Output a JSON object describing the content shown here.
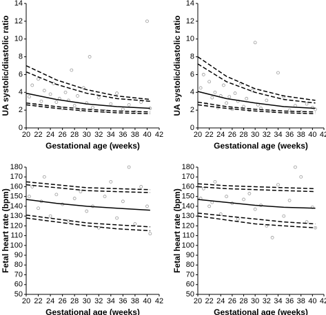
{
  "chart_data": [
    {
      "type": "scatter",
      "xlabel": "Gestational age (weeks)",
      "ylabel": "UA systolic/diastolic ratio",
      "xlim": [
        20,
        42
      ],
      "ylim": [
        0,
        14
      ],
      "xticks": [
        20,
        22,
        24,
        26,
        28,
        30,
        32,
        34,
        36,
        38,
        40,
        42
      ],
      "yticks": [
        0,
        2,
        4,
        6,
        8,
        10,
        12,
        14
      ],
      "point_color": "#999999",
      "points": {
        "x": [
          20.5,
          21,
          21.5,
          22,
          22.5,
          23,
          23.5,
          24,
          24.5,
          25,
          25.5,
          26,
          26.5,
          27,
          27.5,
          28,
          28.5,
          29,
          29.5,
          30,
          30.5,
          31,
          32,
          33,
          34,
          35,
          36,
          37,
          38,
          39,
          40,
          40.5
        ],
        "y": [
          3.5,
          4.8,
          2.6,
          5.5,
          3.0,
          4.2,
          2.4,
          3.8,
          5.0,
          2.9,
          3.3,
          2.2,
          4.0,
          3.1,
          6.5,
          2.5,
          3.6,
          2.0,
          4.5,
          2.8,
          8.0,
          2.3,
          3.4,
          1.9,
          2.7,
          3.9,
          2.1,
          2.6,
          1.8,
          2.9,
          12.0,
          2.2
        ]
      },
      "curves": [
        {
          "style": "dashed",
          "x": [
            20,
            25,
            30,
            35,
            40.5
          ],
          "values": [
            7.0,
            5.4,
            4.3,
            3.6,
            3.2
          ]
        },
        {
          "style": "dashed",
          "x": [
            20,
            25,
            30,
            35,
            40.5
          ],
          "values": [
            6.3,
            4.9,
            3.9,
            3.3,
            3.0
          ]
        },
        {
          "style": "solid",
          "x": [
            20,
            25,
            30,
            35,
            40.5
          ],
          "values": [
            3.9,
            3.2,
            2.7,
            2.4,
            2.2
          ]
        },
        {
          "style": "dashed",
          "x": [
            20,
            25,
            30,
            35,
            40.5
          ],
          "values": [
            2.8,
            2.4,
            2.1,
            1.9,
            1.8
          ]
        },
        {
          "style": "dashed",
          "x": [
            20,
            25,
            30,
            35,
            40.5
          ],
          "values": [
            2.6,
            2.2,
            1.9,
            1.7,
            1.6
          ]
        }
      ]
    },
    {
      "type": "scatter",
      "xlabel": "Gestational age (weeks)",
      "ylabel": "UA systolic/diastolic ratio",
      "xlim": [
        20,
        42
      ],
      "ylim": [
        0,
        14
      ],
      "xticks": [
        20,
        22,
        24,
        26,
        28,
        30,
        32,
        34,
        36,
        38,
        40,
        42
      ],
      "yticks": [
        0,
        2,
        4,
        6,
        8,
        10,
        12,
        14
      ],
      "point_color": "#999999",
      "points": {
        "x": [
          20.5,
          21,
          21.5,
          22,
          22.5,
          23,
          23.5,
          24,
          24.5,
          25,
          25.5,
          26,
          26.5,
          27,
          27.5,
          28,
          28.5,
          29,
          29.5,
          30,
          30.5,
          31,
          32,
          33,
          34,
          35,
          36,
          37,
          38,
          39,
          40,
          40.5
        ],
        "y": [
          4.5,
          6.0,
          2.7,
          5.2,
          3.4,
          4.0,
          2.3,
          3.6,
          4.8,
          2.8,
          3.5,
          2.1,
          3.9,
          3.0,
          5.0,
          2.4,
          3.3,
          2.0,
          4.2,
          9.6,
          2.6,
          2.2,
          3.1,
          1.9,
          6.2,
          3.5,
          2.0,
          2.5,
          1.8,
          2.7,
          2.3,
          2.1
        ]
      },
      "curves": [
        {
          "style": "dashed",
          "x": [
            20,
            25,
            30,
            35,
            40.5
          ],
          "values": [
            8.0,
            5.8,
            4.4,
            3.6,
            3.1
          ]
        },
        {
          "style": "dashed",
          "x": [
            20,
            25,
            30,
            35,
            40.5
          ],
          "values": [
            7.2,
            5.2,
            4.0,
            3.2,
            2.8
          ]
        },
        {
          "style": "solid",
          "x": [
            20,
            25,
            30,
            35,
            40.5
          ],
          "values": [
            4.1,
            3.3,
            2.8,
            2.4,
            2.2
          ]
        },
        {
          "style": "dashed",
          "x": [
            20,
            25,
            30,
            35,
            40.5
          ],
          "values": [
            2.9,
            2.4,
            2.1,
            1.9,
            1.8
          ]
        },
        {
          "style": "dashed",
          "x": [
            20,
            25,
            30,
            35,
            40.5
          ],
          "values": [
            2.6,
            2.2,
            1.9,
            1.7,
            1.6
          ]
        }
      ]
    },
    {
      "type": "scatter",
      "xlabel": "Gestational age (weeks)",
      "ylabel": "Fetal heart rate (bpm)",
      "xlim": [
        20,
        42
      ],
      "ylim": [
        50,
        180
      ],
      "xticks": [
        20,
        22,
        24,
        26,
        28,
        30,
        32,
        34,
        36,
        38,
        40,
        42
      ],
      "yticks": [
        50,
        60,
        70,
        80,
        90,
        100,
        110,
        120,
        130,
        140,
        150,
        160,
        170,
        180
      ],
      "point_color": "#999999",
      "points": {
        "x": [
          20.5,
          21,
          22,
          22.5,
          23,
          24,
          25,
          26,
          27,
          28,
          29,
          30,
          31,
          32,
          33,
          34,
          35,
          36,
          37,
          38,
          39,
          40,
          40.5
        ],
        "y": [
          150,
          160,
          138,
          145,
          170,
          130,
          152,
          142,
          125,
          148,
          155,
          135,
          140,
          118,
          150,
          165,
          128,
          145,
          180,
          122,
          160,
          140,
          112
        ]
      },
      "curves": [
        {
          "style": "dashed",
          "x": [
            20,
            25,
            30,
            35,
            40.5
          ],
          "values": [
            165,
            162,
            159,
            158,
            157
          ]
        },
        {
          "style": "dashed",
          "x": [
            20,
            25,
            30,
            35,
            40.5
          ],
          "values": [
            162,
            159,
            156,
            155,
            154
          ]
        },
        {
          "style": "solid",
          "x": [
            20,
            25,
            30,
            35,
            40.5
          ],
          "values": [
            147,
            143,
            140,
            138,
            136
          ]
        },
        {
          "style": "dashed",
          "x": [
            20,
            25,
            30,
            35,
            40.5
          ],
          "values": [
            131,
            127,
            123,
            121,
            119
          ]
        },
        {
          "style": "dashed",
          "x": [
            20,
            25,
            30,
            35,
            40.5
          ],
          "values": [
            128,
            124,
            120,
            117,
            115
          ]
        }
      ]
    },
    {
      "type": "scatter",
      "xlabel": "Gestational age (weeks)",
      "ylabel": "Fetal heart rate (bpm)",
      "xlim": [
        20,
        42
      ],
      "ylim": [
        50,
        180
      ],
      "xticks": [
        20,
        22,
        24,
        26,
        28,
        30,
        32,
        34,
        36,
        38,
        40,
        42
      ],
      "yticks": [
        50,
        60,
        70,
        80,
        90,
        100,
        110,
        120,
        130,
        140,
        150,
        160,
        170,
        180
      ],
      "point_color": "#999999",
      "points": {
        "x": [
          20.5,
          21,
          22,
          22.5,
          23,
          24,
          25,
          26,
          27,
          28,
          29,
          30,
          31,
          32,
          33,
          34,
          35,
          36,
          37,
          38,
          39,
          40,
          40.5
        ],
        "y": [
          148,
          158,
          140,
          144,
          165,
          132,
          150,
          143,
          127,
          147,
          153,
          137,
          141,
          120,
          108,
          162,
          130,
          146,
          180,
          170,
          124,
          139,
          118
        ]
      },
      "curves": [
        {
          "style": "dashed",
          "x": [
            20,
            25,
            30,
            35,
            40.5
          ],
          "values": [
            163,
            161,
            160,
            159,
            158
          ]
        },
        {
          "style": "dashed",
          "x": [
            20,
            25,
            30,
            35,
            40.5
          ],
          "values": [
            160,
            158,
            157,
            156,
            155
          ]
        },
        {
          "style": "solid",
          "x": [
            20,
            25,
            30,
            35,
            40.5
          ],
          "values": [
            147,
            144,
            141,
            139,
            138
          ]
        },
        {
          "style": "dashed",
          "x": [
            20,
            25,
            30,
            35,
            40.5
          ],
          "values": [
            133,
            130,
            127,
            124,
            122
          ]
        },
        {
          "style": "dashed",
          "x": [
            20,
            25,
            30,
            35,
            40.5
          ],
          "values": [
            130,
            126,
            122,
            120,
            118
          ]
        }
      ]
    }
  ]
}
